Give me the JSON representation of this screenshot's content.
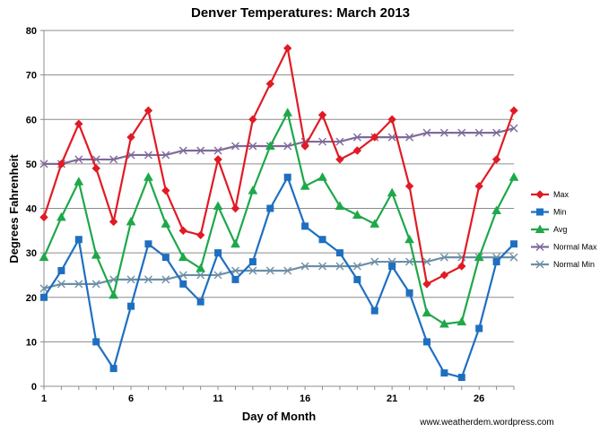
{
  "chart_data": {
    "type": "line",
    "title": "Denver Temperatures: March 2013",
    "xlabel": "Day of Month",
    "ylabel": "Degrees  Fahrenheit",
    "ylim": [
      0,
      80
    ],
    "xlim": [
      1,
      28
    ],
    "yticks": [
      0,
      10,
      20,
      30,
      40,
      50,
      60,
      70,
      80
    ],
    "xticks": [
      1,
      6,
      11,
      16,
      21,
      26
    ],
    "grid": "horizontal",
    "legend": "right",
    "credit": "www.weatherdem.wordpress.com",
    "x": [
      1,
      2,
      3,
      4,
      5,
      6,
      7,
      8,
      9,
      10,
      11,
      12,
      13,
      14,
      15,
      16,
      17,
      18,
      19,
      20,
      21,
      22,
      23,
      24,
      25,
      26,
      27,
      28
    ],
    "series": [
      {
        "name": "Max",
        "color": "#e01b24",
        "marker": "diamond",
        "values": [
          38,
          50,
          59,
          49,
          37,
          56,
          62,
          44,
          35,
          34,
          51,
          40,
          60,
          68,
          76,
          54,
          61,
          51,
          53,
          56,
          60,
          45,
          23,
          25,
          27,
          45,
          51,
          62
        ]
      },
      {
        "name": "Min",
        "color": "#1f6fc0",
        "marker": "square",
        "values": [
          20,
          26,
          33,
          10,
          4,
          18,
          32,
          29,
          23,
          19,
          30,
          24,
          28,
          40,
          47,
          36,
          33,
          30,
          24,
          17,
          27,
          21,
          10,
          3,
          2,
          13,
          28,
          32
        ]
      },
      {
        "name": "Avg",
        "color": "#1ea84a",
        "marker": "triangle",
        "values": [
          29,
          38,
          46,
          29.5,
          20.5,
          37,
          47,
          36.5,
          29,
          26.5,
          40.5,
          32,
          44,
          54,
          61.5,
          45,
          47,
          40.5,
          38.5,
          36.5,
          43.5,
          33,
          16.5,
          14,
          14.5,
          29,
          39.5,
          47
        ]
      },
      {
        "name": "Normal Max",
        "color": "#7f6a9a",
        "marker": "x",
        "values": [
          50,
          50,
          51,
          51,
          51,
          52,
          52,
          52,
          53,
          53,
          53,
          54,
          54,
          54,
          54,
          55,
          55,
          55,
          56,
          56,
          56,
          56,
          57,
          57,
          57,
          57,
          57,
          58
        ]
      },
      {
        "name": "Normal Min",
        "color": "#6d8fa6",
        "marker": "x",
        "values": [
          22,
          23,
          23,
          23,
          24,
          24,
          24,
          24,
          25,
          25,
          25,
          26,
          26,
          26,
          26,
          27,
          27,
          27,
          27,
          28,
          28,
          28,
          28,
          29,
          29,
          29,
          29,
          29
        ]
      }
    ]
  }
}
